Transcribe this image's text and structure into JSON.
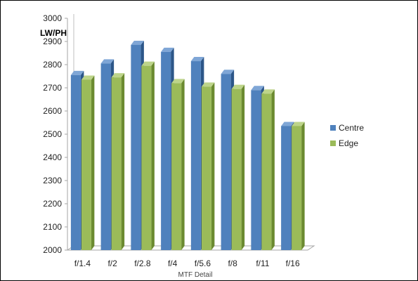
{
  "chart_data": {
    "type": "bar",
    "categories": [
      "f/1.4",
      "f/2",
      "f/2.8",
      "f/4",
      "f/5.6",
      "f/8",
      "f/11",
      "f/16"
    ],
    "series": [
      {
        "name": "Centre",
        "values": [
          2755,
          2805,
          2885,
          2855,
          2815,
          2760,
          2690,
          2535
        ]
      },
      {
        "name": "Edge",
        "values": [
          2735,
          2745,
          2795,
          2720,
          2705,
          2695,
          2675,
          2535
        ]
      }
    ],
    "xlabel": "MTF Detail",
    "ylabel": "LW/PH",
    "ylim": [
      2000,
      3000
    ],
    "yticks": [
      2000,
      2100,
      2200,
      2300,
      2400,
      2500,
      2600,
      2700,
      2800,
      2900,
      3000
    ],
    "legend_position": "right",
    "grid": false,
    "colors": {
      "Centre": {
        "front": "#4f81bd",
        "side": "#2c5688",
        "top": "#7fa6d6"
      },
      "Edge": {
        "front": "#9bbb59",
        "side": "#6b8a30",
        "top": "#bdd48a"
      }
    }
  }
}
